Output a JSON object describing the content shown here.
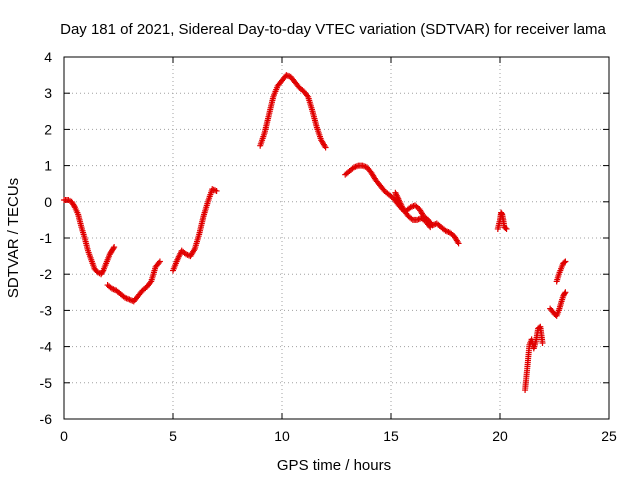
{
  "colors": {
    "series": "#e00000",
    "grid": "#a0a0a0",
    "frame": "#000000"
  },
  "chart_data": {
    "type": "scatter",
    "title": "Day 181 of 2021, Sidereal Day-to-day VTEC variation (SDTVAR) for receiver lama",
    "xlabel": "GPS time / hours",
    "ylabel": "SDTVAR / TECUs",
    "xlim": [
      0,
      25
    ],
    "ylim": [
      -6,
      4
    ],
    "xticks": [
      0,
      5,
      10,
      15,
      20,
      25
    ],
    "yticks": [
      -6,
      -5,
      -4,
      -3,
      -2,
      -1,
      0,
      1,
      2,
      3,
      4
    ],
    "grid": true,
    "marker": "plus",
    "legend": "none",
    "segments": [
      {
        "x": [
          0.0,
          0.2,
          0.35,
          0.5,
          0.65,
          0.8,
          0.95,
          1.1,
          1.25,
          1.4,
          1.55,
          1.7,
          1.8,
          1.9,
          2.0,
          2.1,
          2.2,
          2.3
        ],
        "y": [
          0.05,
          0.05,
          0.0,
          -0.15,
          -0.35,
          -0.7,
          -1.0,
          -1.35,
          -1.6,
          -1.85,
          -1.95,
          -2.0,
          -1.9,
          -1.75,
          -1.6,
          -1.45,
          -1.35,
          -1.25
        ]
      },
      {
        "x": [
          2.0,
          2.2,
          2.4,
          2.6,
          2.8,
          3.0,
          3.2,
          3.4,
          3.6,
          3.8,
          4.0,
          4.2,
          4.4
        ],
        "y": [
          -2.3,
          -2.4,
          -2.45,
          -2.55,
          -2.65,
          -2.7,
          -2.75,
          -2.6,
          -2.45,
          -2.35,
          -2.2,
          -1.8,
          -1.65
        ]
      },
      {
        "x": [
          5.0,
          5.2,
          5.4,
          5.6,
          5.8,
          6.0,
          6.2,
          6.4,
          6.6,
          6.8,
          7.0
        ],
        "y": [
          -1.9,
          -1.6,
          -1.35,
          -1.45,
          -1.5,
          -1.3,
          -0.9,
          -0.4,
          0.0,
          0.35,
          0.3
        ]
      },
      {
        "x": [
          9.0,
          9.2,
          9.4,
          9.6,
          9.8,
          10.0,
          10.2,
          10.4,
          10.6,
          10.8,
          11.0,
          11.2,
          11.4,
          11.6,
          11.8,
          12.0
        ],
        "y": [
          1.55,
          1.9,
          2.4,
          2.9,
          3.2,
          3.35,
          3.5,
          3.45,
          3.3,
          3.15,
          3.05,
          2.9,
          2.5,
          2.05,
          1.7,
          1.5
        ]
      },
      {
        "x": [
          12.9,
          13.1,
          13.3,
          13.5,
          13.7,
          13.9,
          14.1,
          14.3,
          14.5,
          14.7,
          14.9,
          15.1,
          15.3,
          15.5,
          15.7,
          15.9,
          16.1,
          16.3,
          16.5,
          16.7,
          16.9,
          17.1,
          17.3,
          17.5,
          17.7,
          17.9,
          18.1
        ],
        "y": [
          0.75,
          0.85,
          0.95,
          1.0,
          1.0,
          0.95,
          0.8,
          0.6,
          0.45,
          0.3,
          0.2,
          0.1,
          -0.05,
          -0.2,
          -0.25,
          -0.15,
          -0.1,
          -0.2,
          -0.4,
          -0.5,
          -0.65,
          -0.6,
          -0.7,
          -0.8,
          -0.85,
          -0.95,
          -1.15
        ]
      },
      {
        "x": [
          15.2,
          15.4,
          15.6,
          15.8,
          16.0,
          16.2,
          16.4,
          16.6,
          16.8
        ],
        "y": [
          0.25,
          0.0,
          -0.25,
          -0.4,
          -0.5,
          -0.5,
          -0.45,
          -0.55,
          -0.7
        ]
      },
      {
        "x": [
          19.9,
          20.0,
          20.05,
          20.1,
          20.15,
          20.2,
          20.3
        ],
        "y": [
          -0.75,
          -0.5,
          -0.3,
          -0.35,
          -0.5,
          -0.7,
          -0.75
        ]
      },
      {
        "x": [
          21.15,
          21.25,
          21.35,
          21.45,
          21.55,
          21.65,
          21.75,
          21.85,
          21.95
        ],
        "y": [
          -5.2,
          -4.6,
          -3.95,
          -3.8,
          -4.05,
          -3.85,
          -3.5,
          -3.45,
          -3.9
        ]
      },
      {
        "x": [
          22.3,
          22.5,
          22.6,
          22.7,
          22.8,
          22.9,
          23.0
        ],
        "y": [
          -2.95,
          -3.1,
          -3.15,
          -3.0,
          -2.8,
          -2.6,
          -2.5
        ]
      },
      {
        "x": [
          22.6,
          22.7,
          22.8,
          22.9,
          23.0
        ],
        "y": [
          -2.2,
          -2.0,
          -1.85,
          -1.7,
          -1.65
        ]
      }
    ]
  }
}
